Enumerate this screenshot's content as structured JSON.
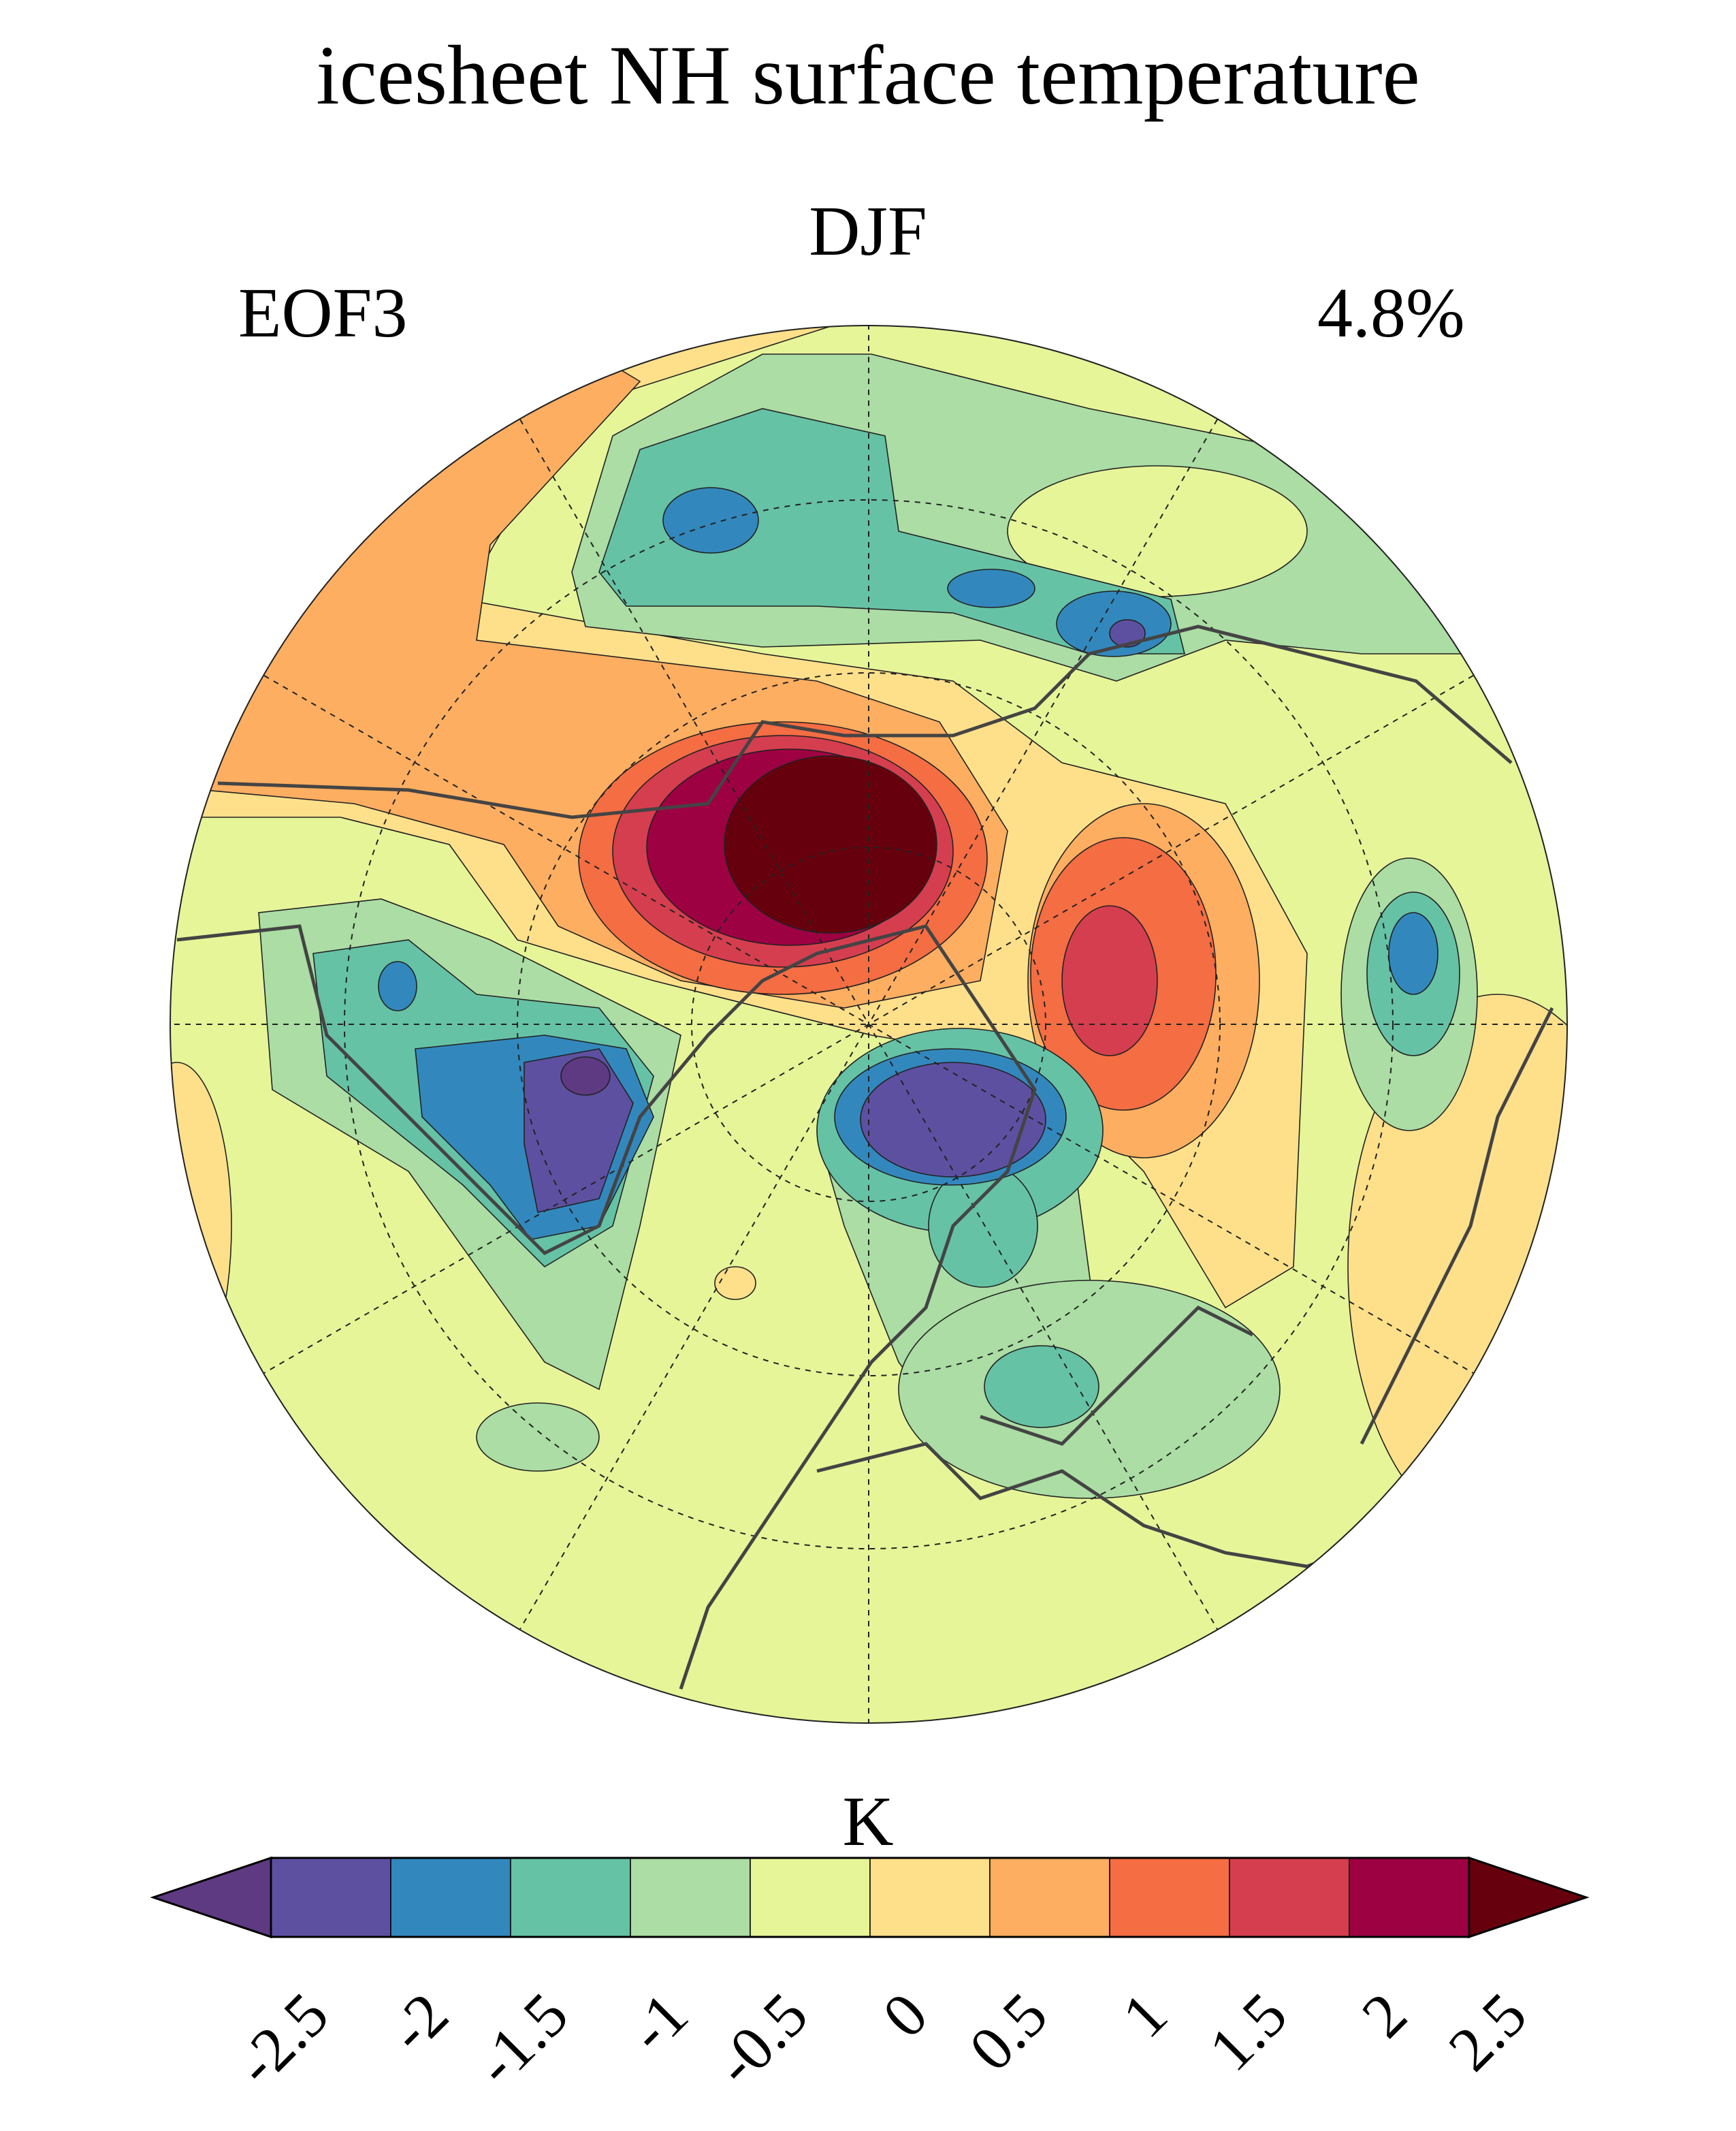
{
  "figure": {
    "title": "icesheet NH surface temperature",
    "season": "DJF",
    "mode_label": "EOF3",
    "explained_variance": "4.8%"
  },
  "colorbar": {
    "unit": "K",
    "ticks": [
      "-2.5",
      "-2",
      "-1.5",
      "-1",
      "-0.5",
      "0",
      "0.5",
      "1",
      "1.5",
      "2",
      "2.5"
    ],
    "under_color": "#5e3a82",
    "over_color": "#67000d",
    "colors": [
      "#5e50a1",
      "#3288bd",
      "#66c2a5",
      "#abdda4",
      "#e6f598",
      "#fee08b",
      "#fdae61",
      "#f46d43",
      "#d53e4f",
      "#9e0142"
    ]
  },
  "chart_data": {
    "type": "heatmap",
    "title": "icesheet NH surface temperature",
    "subtitle": "DJF",
    "annotations": [
      "EOF3",
      "4.8%"
    ],
    "projection": "north polar stereographic",
    "colorbar_label": "K",
    "levels": [
      -2.5,
      -2,
      -1.5,
      -1,
      -0.5,
      0,
      0.5,
      1,
      1.5,
      2,
      2.5
    ],
    "extend": "both",
    "value_range": [
      -2.5,
      2.5
    ]
  }
}
